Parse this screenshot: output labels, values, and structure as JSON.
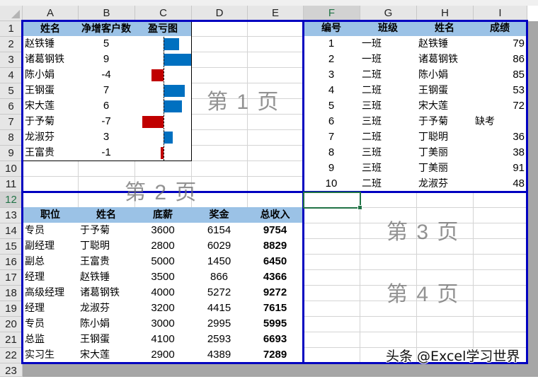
{
  "columns": [
    "A",
    "B",
    "C",
    "D",
    "E",
    "F",
    "G",
    "H",
    "I"
  ],
  "selected_column": "F",
  "rows": [
    "1",
    "2",
    "3",
    "4",
    "5",
    "6",
    "7",
    "8",
    "9",
    "10",
    "11",
    "12",
    "13",
    "14",
    "15",
    "16",
    "17",
    "18",
    "19",
    "20",
    "21",
    "22",
    "23"
  ],
  "selected_row": "12",
  "table_customers": {
    "headers": [
      "姓名",
      "净增客户数",
      "盈亏图"
    ],
    "rows": [
      {
        "name": "赵铁锤",
        "value": "5"
      },
      {
        "name": "诸葛钢铁",
        "value": "9"
      },
      {
        "name": "陈小娟",
        "value": "-4"
      },
      {
        "name": "王钢蛋",
        "value": "7"
      },
      {
        "name": "宋大莲",
        "value": "6"
      },
      {
        "name": "于予菊",
        "value": "-7"
      },
      {
        "name": "龙淑芬",
        "value": "3"
      },
      {
        "name": "王富贵",
        "value": "-1"
      }
    ],
    "bar_positive_color": "#0070c0",
    "bar_negative_color": "#c00000"
  },
  "table_salary": {
    "headers": [
      "职位",
      "姓名",
      "底薪",
      "奖金",
      "总收入"
    ],
    "rows": [
      [
        "专员",
        "于予菊",
        "3600",
        "6154",
        "9754"
      ],
      [
        "副经理",
        "丁聪明",
        "2800",
        "6029",
        "8829"
      ],
      [
        "副总",
        "王富贵",
        "5000",
        "1450",
        "6450"
      ],
      [
        "经理",
        "赵铁锤",
        "3500",
        "866",
        "4366"
      ],
      [
        "高级经理",
        "诸葛钢铁",
        "4000",
        "5272",
        "9272"
      ],
      [
        "经理",
        "龙淑芬",
        "3200",
        "4415",
        "7615"
      ],
      [
        "专员",
        "陈小娟",
        "3000",
        "2995",
        "5995"
      ],
      [
        "总监",
        "王钢蛋",
        "4100",
        "2593",
        "6693"
      ],
      [
        "实习生",
        "宋大莲",
        "2900",
        "4389",
        "7289"
      ]
    ]
  },
  "table_scores": {
    "headers": [
      "编号",
      "班级",
      "姓名",
      "成绩"
    ],
    "rows": [
      [
        "1",
        "一班",
        "赵铁锤",
        "79"
      ],
      [
        "2",
        "一班",
        "诸葛钢铁",
        "86"
      ],
      [
        "3",
        "二班",
        "陈小娟",
        "85"
      ],
      [
        "4",
        "二班",
        "王钢蛋",
        "53"
      ],
      [
        "5",
        "三班",
        "宋大莲",
        "72"
      ],
      [
        "6",
        "三班",
        "于予菊",
        "缺考"
      ],
      [
        "7",
        "二班",
        "丁聪明",
        "36"
      ],
      [
        "8",
        "三班",
        "丁美丽",
        "38"
      ],
      [
        "9",
        "三班",
        "丁美丽",
        "91"
      ],
      [
        "10",
        "二班",
        "龙淑芬",
        "48"
      ]
    ]
  },
  "page_labels": [
    "第 1 页",
    "第 2 页",
    "第 3 页",
    "第 4 页"
  ],
  "page_break_color": "#0000c0",
  "header_fill_color": "#9bc2e6",
  "watermark": "头条 @Excel学习世界"
}
